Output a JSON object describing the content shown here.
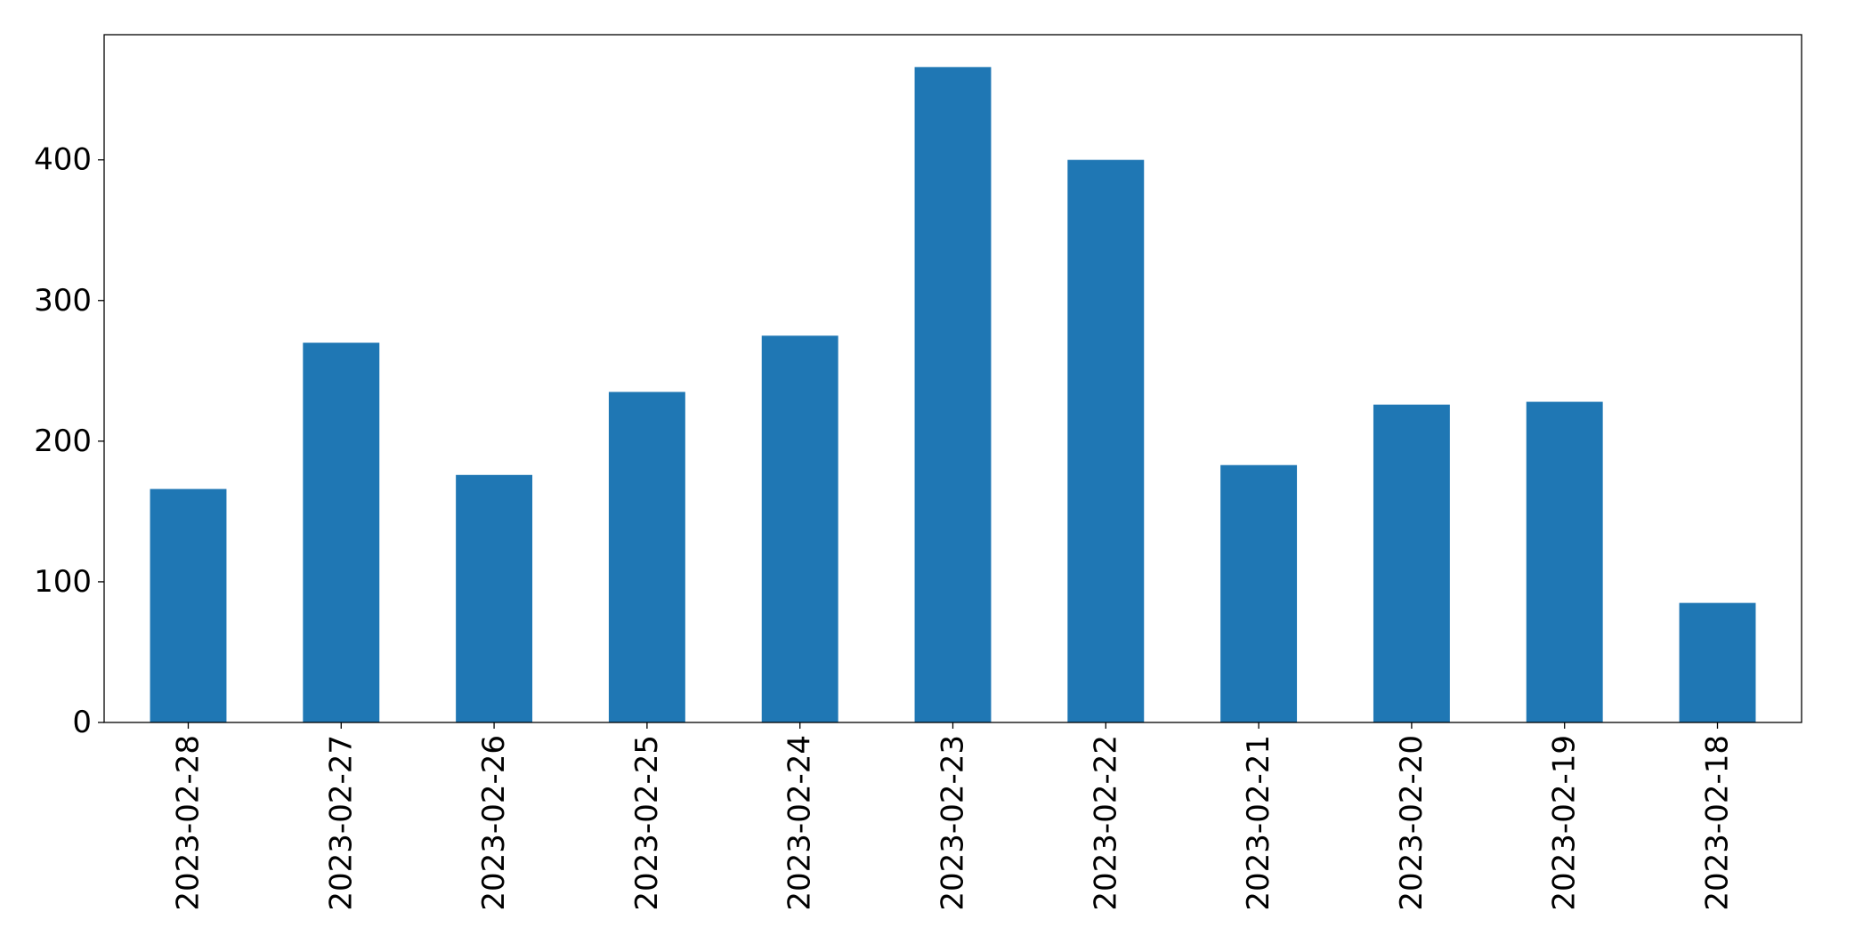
{
  "chart_data": {
    "type": "bar",
    "title": "",
    "xlabel": "",
    "ylabel": "",
    "categories": [
      "2023-02-28",
      "2023-02-27",
      "2023-02-26",
      "2023-02-25",
      "2023-02-24",
      "2023-02-23",
      "2023-02-22",
      "2023-02-21",
      "2023-02-20",
      "2023-02-19",
      "2023-02-18"
    ],
    "values": [
      166,
      270,
      176,
      235,
      275,
      466,
      400,
      183,
      226,
      228,
      85
    ],
    "yticks": [
      0,
      100,
      200,
      300,
      400
    ],
    "ylim": [
      0,
      489
    ],
    "bar_color": "#1f77b4",
    "grid": false,
    "legend": "none",
    "x_tick_rotation": "vertical"
  }
}
